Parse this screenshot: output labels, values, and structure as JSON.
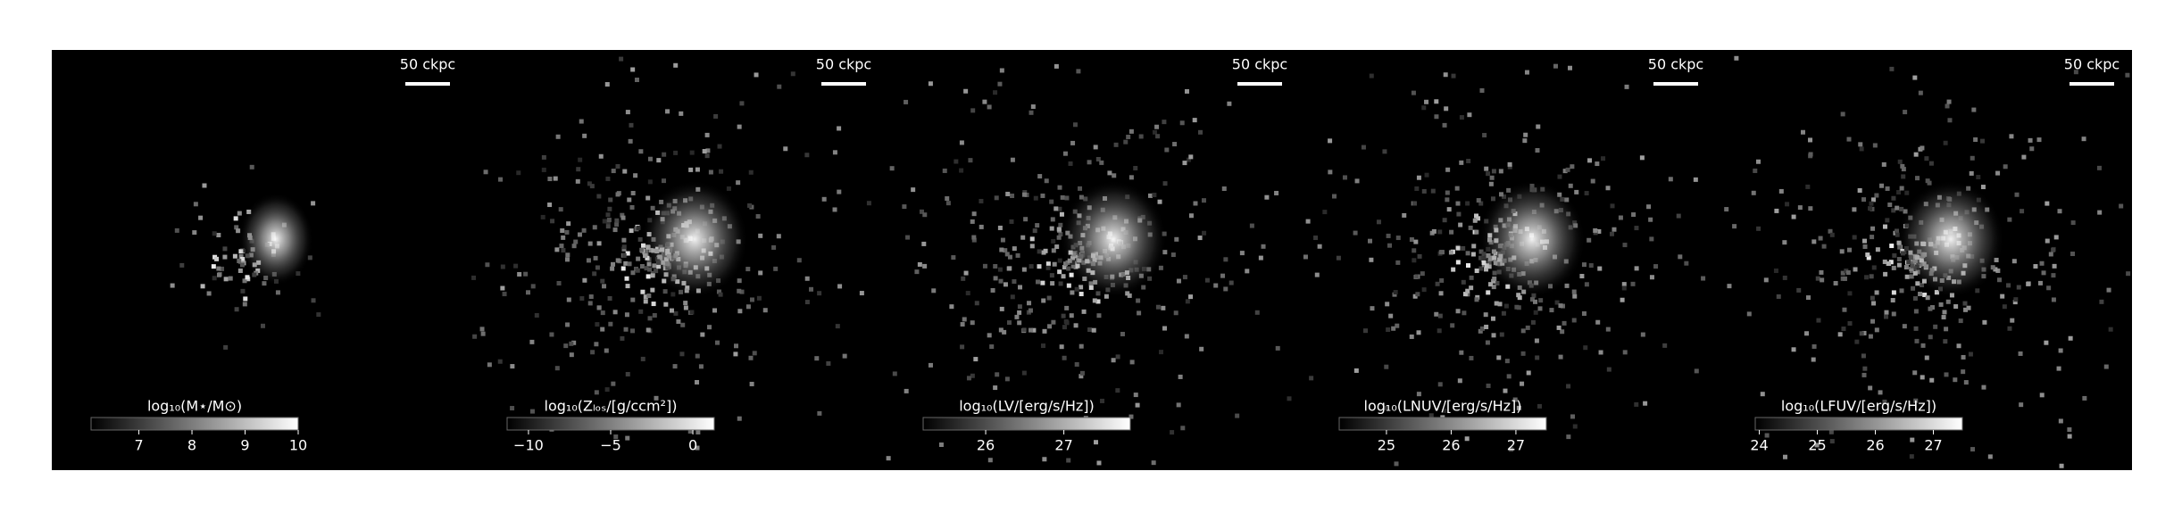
{
  "chart_data": [
    {
      "type": "image",
      "scalebar_label": "50 ckpc",
      "colorbar_label": "log₁₀(M⋆/M⊙)",
      "clim": [
        6.1,
        10.0
      ],
      "cticks": [
        7,
        8,
        9,
        10
      ]
    },
    {
      "type": "image",
      "scalebar_label": "50 ckpc",
      "colorbar_label": "log₁₀(Zₗₒₛ/[g/ccm²])",
      "clim": [
        -11.3,
        1.3
      ],
      "cticks": [
        {
          "value": -10,
          "label": "−10"
        },
        {
          "value": -5,
          "label": "−5"
        },
        0
      ]
    },
    {
      "type": "image",
      "scalebar_label": "50 ckpc",
      "colorbar_label": "log₁₀(LV/[erg/s/Hz])",
      "clim": [
        25.2,
        27.85
      ],
      "cticks": [
        26,
        27
      ]
    },
    {
      "type": "image",
      "scalebar_label": "50 ckpc",
      "colorbar_label": "log₁₀(LNUV/[erg/s/Hz])",
      "clim": [
        24.27,
        27.47
      ],
      "cticks": [
        25,
        26,
        27
      ]
    },
    {
      "type": "image",
      "scalebar_label": "50 ckpc",
      "colorbar_label": "log₁₀(LFUV/[erg/s/Hz])",
      "clim": [
        23.93,
        27.5
      ],
      "cticks": [
        24,
        25,
        26,
        27
      ]
    }
  ]
}
